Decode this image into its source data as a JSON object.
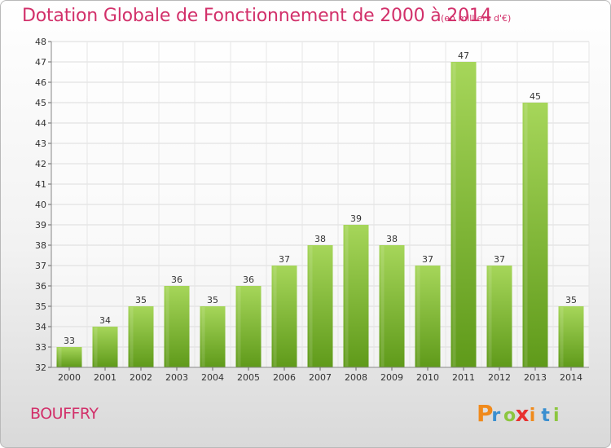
{
  "chart_data": {
    "type": "bar",
    "title": "Dotation Globale de Fonctionnement de 2000 à 2014",
    "subtitle": "(en milliers d'€)",
    "categories": [
      "2000",
      "2001",
      "2002",
      "2003",
      "2004",
      "2005",
      "2006",
      "2007",
      "2008",
      "2009",
      "2010",
      "2011",
      "2012",
      "2013",
      "2014"
    ],
    "values": [
      33,
      34,
      35,
      36,
      35,
      36,
      37,
      38,
      39,
      38,
      37,
      47,
      37,
      45,
      35
    ],
    "ylim": [
      32,
      48
    ],
    "yticks": [
      32,
      33,
      34,
      35,
      36,
      37,
      38,
      39,
      40,
      41,
      42,
      43,
      44,
      45,
      46,
      47,
      48
    ],
    "xlabel": "",
    "ylabel": "",
    "grid": true,
    "colors": {
      "bar_top": "#a6d65a",
      "bar_bottom": "#5f9a1a",
      "title": "#d2306a"
    }
  },
  "commune": "BOUFFRY",
  "logo": {
    "letters": [
      "P",
      "r",
      "o",
      "x",
      "i",
      "t",
      "i"
    ],
    "colors": [
      "#f08a1c",
      "#3a8fd0",
      "#8cc63f",
      "#e8312f",
      "#f08a1c",
      "#3a8fd0",
      "#8cc63f"
    ]
  }
}
